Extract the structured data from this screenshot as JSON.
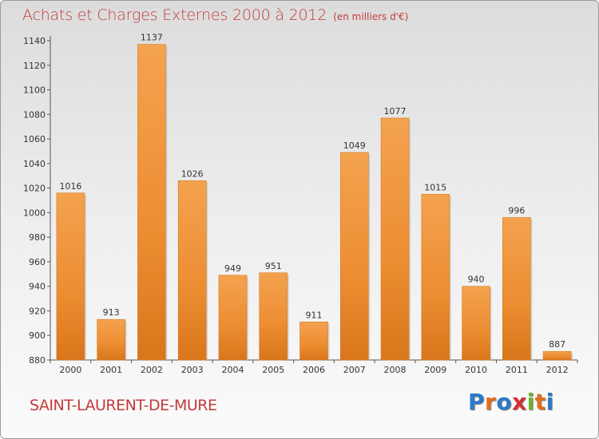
{
  "chart_data": {
    "type": "bar",
    "title": "Achats et Charges Externes 2000 à 2012",
    "subtitle": "(en milliers d'€)",
    "xlabel": "",
    "ylabel": "",
    "categories": [
      "2000",
      "2001",
      "2002",
      "2003",
      "2004",
      "2005",
      "2006",
      "2007",
      "2008",
      "2009",
      "2010",
      "2011",
      "2012"
    ],
    "values": [
      1016,
      913,
      1137,
      1026,
      949,
      951,
      911,
      1049,
      1077,
      1015,
      940,
      996,
      887
    ],
    "ylim": [
      880,
      1140
    ],
    "yticks": [
      880,
      900,
      920,
      940,
      960,
      980,
      1000,
      1020,
      1040,
      1060,
      1080,
      1100,
      1120,
      1140
    ],
    "grid": false,
    "bar_color": "#f09a45",
    "bar_shadow_color": "#d77a1e"
  },
  "footer": {
    "commune": "SAINT-LAURENT-DE-MURE",
    "logo_letters": [
      {
        "char": "P",
        "color": "#2d79c7"
      },
      {
        "char": "r",
        "color": "#e46c1c"
      },
      {
        "char": "o",
        "color": "#2d79c7"
      },
      {
        "char": "x",
        "color": "#d62f2f"
      },
      {
        "char": "i",
        "color": "#6fb02e"
      },
      {
        "char": "t",
        "color": "#e46c1c"
      },
      {
        "char": "i",
        "color": "#2d79c7"
      }
    ]
  }
}
